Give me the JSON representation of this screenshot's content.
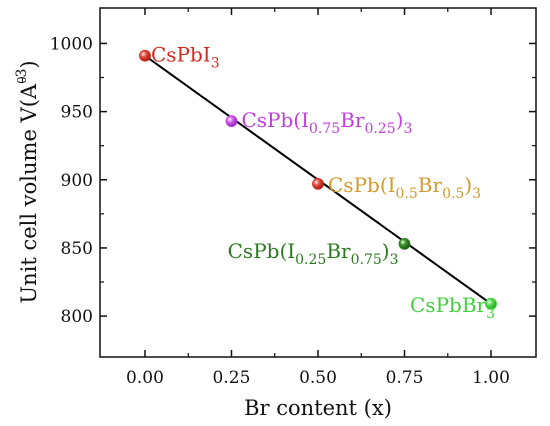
{
  "chart_data": {
    "type": "scatter",
    "title": "",
    "xlabel": "Br content (x)",
    "ylabel": {
      "main": "Unit cell volume V(",
      "unit_base": "A",
      "unit_ring": "0",
      "unit_exp": "-3",
      "close": ")"
    },
    "xlim": [
      -0.13,
      1.13
    ],
    "ylim": [
      770,
      1026
    ],
    "x_ticks": [
      0.0,
      0.25,
      0.5,
      0.75,
      1.0
    ],
    "x_tick_labels": [
      "0.00",
      "0.25",
      "0.50",
      "0.75",
      "1.00"
    ],
    "y_ticks": [
      800,
      850,
      900,
      950,
      1000
    ],
    "y_tick_labels": [
      "800",
      "850",
      "900",
      "950",
      "1000"
    ],
    "grid": false,
    "fit_line": {
      "x": [
        0.0,
        1.0
      ],
      "y": [
        991,
        809
      ],
      "color": "#000000"
    },
    "points": [
      {
        "x": 0.0,
        "y": 991,
        "color": "#d42a1c",
        "label": [
          {
            "text": "CsPbI",
            "sub": false
          },
          {
            "text": "3",
            "sub": true
          }
        ]
      },
      {
        "x": 0.25,
        "y": 943,
        "color": "#c23ee0",
        "label": [
          {
            "text": "CsPb(I",
            "sub": false
          },
          {
            "text": "0.75",
            "sub": true
          },
          {
            "text": "Br",
            "sub": false
          },
          {
            "text": "0.25",
            "sub": true
          },
          {
            "text": ")",
            "sub": false
          },
          {
            "text": "3",
            "sub": true
          }
        ]
      },
      {
        "x": 0.5,
        "y": 897,
        "color": "#d42a1c",
        "label_color": "#d49a2a",
        "label": [
          {
            "text": "CsPb(I",
            "sub": false
          },
          {
            "text": "0.5",
            "sub": true
          },
          {
            "text": "Br",
            "sub": false
          },
          {
            "text": "0.5",
            "sub": true
          },
          {
            "text": ")",
            "sub": false
          },
          {
            "text": "3",
            "sub": true
          }
        ]
      },
      {
        "x": 0.75,
        "y": 853,
        "color": "#2c7a1e",
        "label": [
          {
            "text": "CsPb(I",
            "sub": false
          },
          {
            "text": "0.25",
            "sub": true
          },
          {
            "text": "Br",
            "sub": false
          },
          {
            "text": "0.75",
            "sub": true
          },
          {
            "text": ")",
            "sub": false
          },
          {
            "text": "3",
            "sub": true
          }
        ]
      },
      {
        "x": 1.0,
        "y": 809,
        "color": "#3fd13a",
        "label": [
          {
            "text": "CsPbBr",
            "sub": false
          },
          {
            "text": "3",
            "sub": true
          }
        ]
      }
    ]
  }
}
